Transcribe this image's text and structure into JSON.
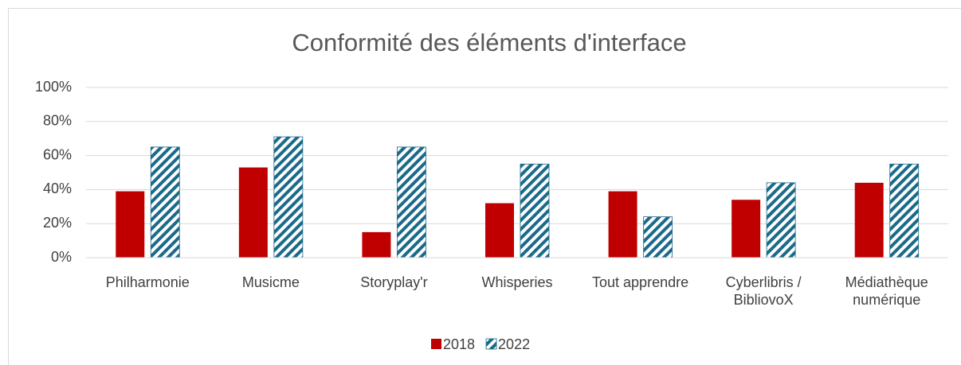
{
  "chart_data": {
    "type": "bar",
    "title": "Conformité des éléments d'interface",
    "categories": [
      "Philharmonie",
      "Musicme",
      "Storyplay'r",
      "Whisperies",
      "Tout apprendre",
      "Cyberlibris / BibliovoX",
      "Médiathèque numérique"
    ],
    "series": [
      {
        "name": "2018",
        "color": "#c00000",
        "values": [
          39,
          53,
          15,
          32,
          39,
          34,
          44
        ]
      },
      {
        "name": "2022",
        "color": "#1b6a8a",
        "pattern": "diagonal-stripes",
        "values": [
          65,
          71,
          65,
          55,
          24,
          44,
          55
        ]
      }
    ],
    "ylim": [
      0,
      100
    ],
    "yticks": [
      {
        "value": 0,
        "label": "0%"
      },
      {
        "value": 20,
        "label": "20%"
      },
      {
        "value": 40,
        "label": "40%"
      },
      {
        "value": 60,
        "label": "60%"
      },
      {
        "value": 80,
        "label": "80%"
      },
      {
        "value": 100,
        "label": "100%"
      }
    ],
    "grid": true,
    "legend": "bottom"
  }
}
